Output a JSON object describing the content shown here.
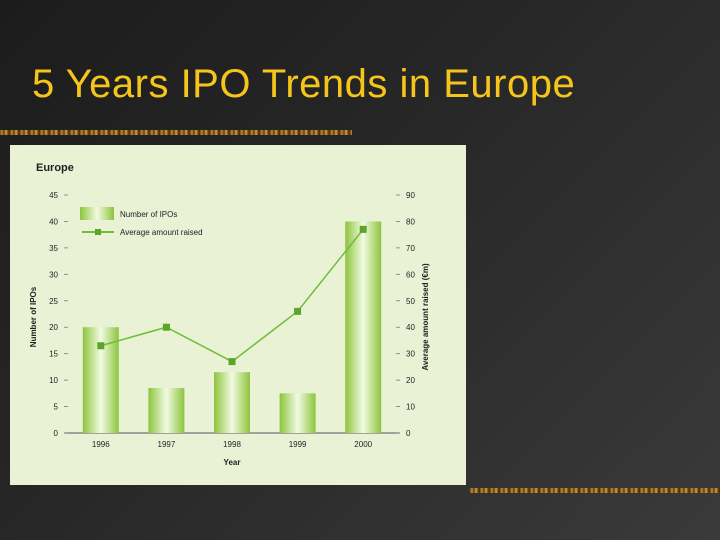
{
  "slide": {
    "title": "5 Years IPO Trends in Europe"
  },
  "chart_data": {
    "type": "bar",
    "title": "Europe",
    "categories": [
      "1996",
      "1997",
      "1998",
      "1999",
      "2000"
    ],
    "xlabel": "Year",
    "ylabel_left": "Number of IPOs",
    "ylabel_right": "Average amount raised (€m)",
    "ylim_left": [
      0,
      45
    ],
    "ylim_right": [
      0,
      90
    ],
    "yticks_left": [
      0,
      5,
      10,
      15,
      20,
      25,
      30,
      35,
      40,
      45
    ],
    "yticks_right": [
      0,
      10,
      20,
      30,
      40,
      50,
      60,
      70,
      80,
      90
    ],
    "grid": false,
    "legend_position": "top-left",
    "series": [
      {
        "name": "Number of IPOs",
        "type": "bar",
        "axis": "left",
        "values": [
          20,
          8.5,
          11.5,
          7.5,
          40
        ]
      },
      {
        "name": "Average amount raised",
        "type": "line",
        "axis": "right",
        "values": [
          33,
          40,
          27,
          46,
          77
        ]
      }
    ],
    "colors": {
      "bar_edge": "#8cc43c",
      "bar_center": "#f2fbe2",
      "line": "#6fbe3a",
      "marker": "#5aa52a",
      "background": "#eaf2d6"
    }
  }
}
